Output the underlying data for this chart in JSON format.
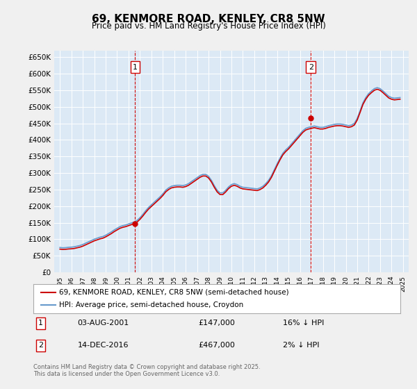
{
  "title": "69, KENMORE ROAD, KENLEY, CR8 5NW",
  "subtitle": "Price paid vs. HM Land Registry's House Price Index (HPI)",
  "ylabel": "",
  "background_color": "#dce9f5",
  "plot_bg_color": "#dce9f5",
  "outer_bg_color": "#f0f0f0",
  "line1_color": "#cc0000",
  "line2_color": "#6699cc",
  "sale1_x": 2001.58,
  "sale1_y": 147000,
  "sale2_x": 2016.95,
  "sale2_y": 467000,
  "vline_color": "#cc0000",
  "vline_style": "--",
  "ylim": [
    0,
    670000
  ],
  "yticks": [
    0,
    50000,
    100000,
    150000,
    200000,
    250000,
    300000,
    350000,
    400000,
    450000,
    500000,
    550000,
    600000,
    650000
  ],
  "ytick_labels": [
    "£0",
    "£50K",
    "£100K",
    "£150K",
    "£200K",
    "£250K",
    "£300K",
    "£350K",
    "£400K",
    "£450K",
    "£500K",
    "£550K",
    "£600K",
    "£650K"
  ],
  "xlim_start": 1994.5,
  "xlim_end": 2025.5,
  "legend1_label": "69, KENMORE ROAD, KENLEY, CR8 5NW (semi-detached house)",
  "legend2_label": "HPI: Average price, semi-detached house, Croydon",
  "annotation1_label": "1",
  "annotation1_date": "03-AUG-2001",
  "annotation1_price": "£147,000",
  "annotation1_hpi": "16% ↓ HPI",
  "annotation2_label": "2",
  "annotation2_date": "14-DEC-2016",
  "annotation2_price": "£467,000",
  "annotation2_hpi": "2% ↓ HPI",
  "footer": "Contains HM Land Registry data © Crown copyright and database right 2025.\nThis data is licensed under the Open Government Licence v3.0.",
  "hpi_data": {
    "years": [
      1995,
      1995.25,
      1995.5,
      1995.75,
      1996,
      1996.25,
      1996.5,
      1996.75,
      1997,
      1997.25,
      1997.5,
      1997.75,
      1998,
      1998.25,
      1998.5,
      1998.75,
      1999,
      1999.25,
      1999.5,
      1999.75,
      2000,
      2000.25,
      2000.5,
      2000.75,
      2001,
      2001.25,
      2001.5,
      2001.75,
      2002,
      2002.25,
      2002.5,
      2002.75,
      2003,
      2003.25,
      2003.5,
      2003.75,
      2004,
      2004.25,
      2004.5,
      2004.75,
      2005,
      2005.25,
      2005.5,
      2005.75,
      2006,
      2006.25,
      2006.5,
      2006.75,
      2007,
      2007.25,
      2007.5,
      2007.75,
      2008,
      2008.25,
      2008.5,
      2008.75,
      2009,
      2009.25,
      2009.5,
      2009.75,
      2010,
      2010.25,
      2010.5,
      2010.75,
      2011,
      2011.25,
      2011.5,
      2011.75,
      2012,
      2012.25,
      2012.5,
      2012.75,
      2013,
      2013.25,
      2013.5,
      2013.75,
      2014,
      2014.25,
      2014.5,
      2014.75,
      2015,
      2015.25,
      2015.5,
      2015.75,
      2016,
      2016.25,
      2016.5,
      2016.75,
      2017,
      2017.25,
      2017.5,
      2017.75,
      2018,
      2018.25,
      2018.5,
      2018.75,
      2019,
      2019.25,
      2019.5,
      2019.75,
      2020,
      2020.25,
      2020.5,
      2020.75,
      2021,
      2021.25,
      2021.5,
      2021.75,
      2022,
      2022.25,
      2022.5,
      2022.75,
      2023,
      2023.25,
      2023.5,
      2023.75,
      2024,
      2024.25,
      2024.5,
      2024.75
    ],
    "values": [
      75000,
      74000,
      74500,
      75500,
      76000,
      77000,
      79000,
      81000,
      84000,
      88000,
      92000,
      96000,
      100000,
      103000,
      106000,
      108000,
      112000,
      117000,
      122000,
      128000,
      133000,
      138000,
      141000,
      143000,
      146000,
      149000,
      152000,
      157000,
      165000,
      175000,
      186000,
      196000,
      204000,
      212000,
      220000,
      228000,
      237000,
      248000,
      255000,
      260000,
      262000,
      263000,
      263000,
      262000,
      264000,
      268000,
      274000,
      280000,
      286000,
      292000,
      296000,
      296000,
      290000,
      278000,
      262000,
      248000,
      240000,
      240000,
      248000,
      258000,
      265000,
      268000,
      265000,
      260000,
      257000,
      256000,
      255000,
      254000,
      253000,
      252000,
      255000,
      260000,
      268000,
      278000,
      292000,
      310000,
      328000,
      345000,
      360000,
      370000,
      378000,
      388000,
      398000,
      408000,
      418000,
      428000,
      435000,
      438000,
      440000,
      442000,
      440000,
      438000,
      438000,
      440000,
      443000,
      445000,
      447000,
      448000,
      448000,
      447000,
      445000,
      443000,
      445000,
      450000,
      465000,
      488000,
      512000,
      528000,
      540000,
      548000,
      555000,
      558000,
      555000,
      548000,
      540000,
      532000,
      528000,
      526000,
      527000,
      528000
    ]
  },
  "price_data": {
    "years": [
      1995,
      1995.25,
      1995.5,
      1995.75,
      1996,
      1996.25,
      1996.5,
      1996.75,
      1997,
      1997.25,
      1997.5,
      1997.75,
      1998,
      1998.25,
      1998.5,
      1998.75,
      1999,
      1999.25,
      1999.5,
      1999.75,
      2000,
      2000.25,
      2000.5,
      2000.75,
      2001,
      2001.25,
      2001.5,
      2001.75,
      2002,
      2002.25,
      2002.5,
      2002.75,
      2003,
      2003.25,
      2003.5,
      2003.75,
      2004,
      2004.25,
      2004.5,
      2004.75,
      2005,
      2005.25,
      2005.5,
      2005.75,
      2006,
      2006.25,
      2006.5,
      2006.75,
      2007,
      2007.25,
      2007.5,
      2007.75,
      2008,
      2008.25,
      2008.5,
      2008.75,
      2009,
      2009.25,
      2009.5,
      2009.75,
      2010,
      2010.25,
      2010.5,
      2010.75,
      2011,
      2011.25,
      2011.5,
      2011.75,
      2012,
      2012.25,
      2012.5,
      2012.75,
      2013,
      2013.25,
      2013.5,
      2013.75,
      2014,
      2014.25,
      2014.5,
      2014.75,
      2015,
      2015.25,
      2015.5,
      2015.75,
      2016,
      2016.25,
      2016.5,
      2016.75,
      2017,
      2017.25,
      2017.5,
      2017.75,
      2018,
      2018.25,
      2018.5,
      2018.75,
      2019,
      2019.25,
      2019.5,
      2019.75,
      2020,
      2020.25,
      2020.5,
      2020.75,
      2021,
      2021.25,
      2021.5,
      2021.75,
      2022,
      2022.25,
      2022.5,
      2022.75,
      2023,
      2023.25,
      2023.5,
      2023.75,
      2024,
      2024.25,
      2024.5,
      2024.75
    ],
    "values": [
      70000,
      69000,
      69500,
      70500,
      71000,
      72000,
      74000,
      76000,
      79000,
      83000,
      87000,
      91000,
      95000,
      98000,
      101000,
      103000,
      107000,
      112000,
      117000,
      123000,
      128000,
      133000,
      136000,
      138000,
      141000,
      144000,
      147000,
      152000,
      160000,
      170000,
      181000,
      191000,
      199000,
      207000,
      215000,
      223000,
      232000,
      243000,
      250000,
      255000,
      257000,
      258000,
      258000,
      257000,
      259000,
      263000,
      269000,
      275000,
      281000,
      287000,
      291000,
      291000,
      285000,
      273000,
      257000,
      243000,
      235000,
      235000,
      243000,
      253000,
      260000,
      263000,
      260000,
      255000,
      252000,
      251000,
      250000,
      249000,
      248000,
      247000,
      250000,
      255000,
      263000,
      273000,
      287000,
      305000,
      323000,
      340000,
      355000,
      365000,
      373000,
      383000,
      393000,
      403000,
      413000,
      423000,
      430000,
      433000,
      435000,
      437000,
      435000,
      433000,
      433000,
      435000,
      438000,
      440000,
      442000,
      443000,
      443000,
      442000,
      440000,
      438000,
      440000,
      445000,
      460000,
      483000,
      507000,
      523000,
      535000,
      543000,
      550000,
      553000,
      550000,
      543000,
      535000,
      527000,
      523000,
      521000,
      522000,
      523000
    ]
  }
}
